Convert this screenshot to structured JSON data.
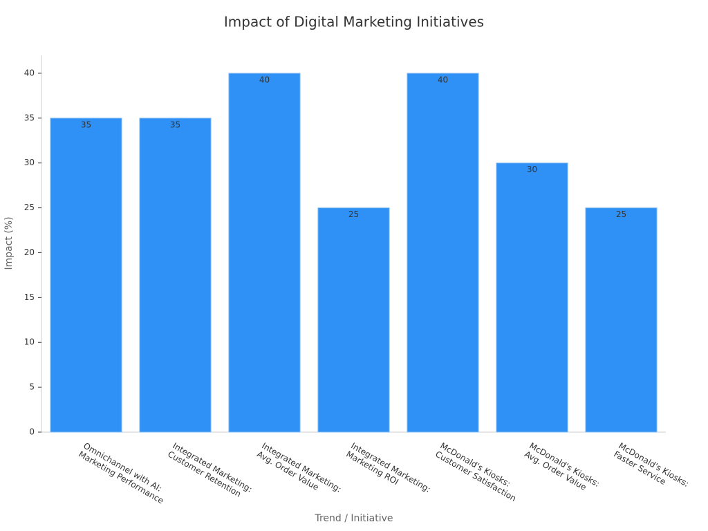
{
  "chart_data": {
    "type": "bar",
    "title": "Impact of Digital Marketing Initiatives",
    "x_label": "Trend / Initiative",
    "y_label": "Impact (%)",
    "categories": [
      [
        "Omnichannel with AI:",
        "Marketing Performance"
      ],
      [
        "Integrated Marketing:",
        "Customer Retention"
      ],
      [
        "Integrated Marketing:",
        "Avg. Order Value"
      ],
      [
        "Integrated Marketing:",
        "Marketing ROI"
      ],
      [
        "McDonald's Kiosks:",
        "Customer Satisfaction"
      ],
      [
        "McDonald's Kiosks:",
        "Avg. Order Value"
      ],
      [
        "McDonald's Kiosks:",
        "Faster Service"
      ]
    ],
    "values": [
      35,
      35,
      40,
      25,
      40,
      30,
      25
    ],
    "color": "#2f91f5",
    "ylim": [
      0,
      42
    ],
    "yticks": [
      0,
      5,
      10,
      15,
      20,
      25,
      30,
      35,
      40
    ],
    "grid": false
  }
}
